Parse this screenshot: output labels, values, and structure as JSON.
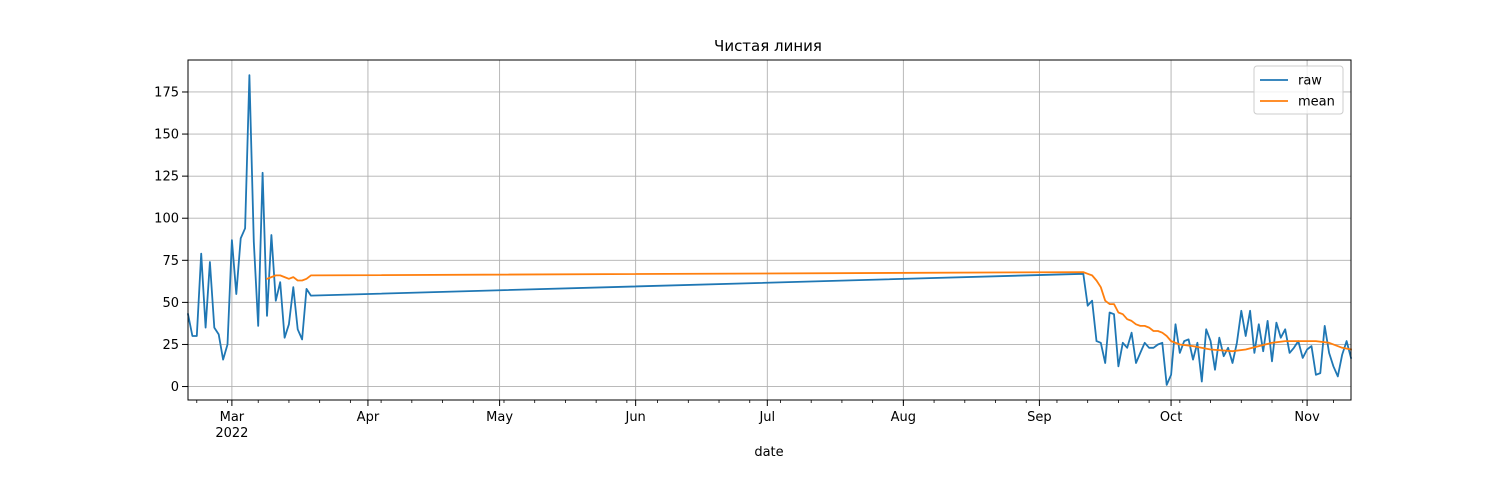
{
  "chart_data": {
    "type": "line",
    "title": "Чистая линия",
    "xlabel": "date",
    "ylabel": "",
    "x_axis_type": "date",
    "xlim": [
      "2022-02-19",
      "2022-11-11"
    ],
    "ylim": [
      -8,
      194
    ],
    "grid": true,
    "legend_position": "top-right",
    "x_ticks": [
      {
        "date": "2022-03-01",
        "label": "Mar",
        "sublabel": "2022"
      },
      {
        "date": "2022-04-01",
        "label": "Apr"
      },
      {
        "date": "2022-05-01",
        "label": "May"
      },
      {
        "date": "2022-06-01",
        "label": "Jun"
      },
      {
        "date": "2022-07-01",
        "label": "Jul"
      },
      {
        "date": "2022-08-01",
        "label": "Aug"
      },
      {
        "date": "2022-09-01",
        "label": "Sep"
      },
      {
        "date": "2022-10-01",
        "label": "Oct"
      },
      {
        "date": "2022-11-01",
        "label": "Nov"
      }
    ],
    "y_ticks": [
      0,
      25,
      50,
      75,
      100,
      125,
      150,
      175
    ],
    "series": [
      {
        "name": "raw",
        "color": "#1f77b4",
        "points": [
          [
            "2022-02-19",
            43
          ],
          [
            "2022-02-20",
            30
          ],
          [
            "2022-02-21",
            30
          ],
          [
            "2022-02-22",
            79
          ],
          [
            "2022-02-23",
            35
          ],
          [
            "2022-02-24",
            74
          ],
          [
            "2022-02-25",
            35
          ],
          [
            "2022-02-26",
            31
          ],
          [
            "2022-02-27",
            16
          ],
          [
            "2022-02-28",
            25
          ],
          [
            "2022-03-01",
            87
          ],
          [
            "2022-03-02",
            55
          ],
          [
            "2022-03-03",
            88
          ],
          [
            "2022-03-04",
            94
          ],
          [
            "2022-03-05",
            185
          ],
          [
            "2022-03-06",
            86
          ],
          [
            "2022-03-07",
            36
          ],
          [
            "2022-03-08",
            127
          ],
          [
            "2022-03-09",
            42
          ],
          [
            "2022-03-10",
            90
          ],
          [
            "2022-03-11",
            51
          ],
          [
            "2022-03-12",
            62
          ],
          [
            "2022-03-13",
            29
          ],
          [
            "2022-03-14",
            37
          ],
          [
            "2022-03-15",
            59
          ],
          [
            "2022-03-16",
            34
          ],
          [
            "2022-03-17",
            28
          ],
          [
            "2022-03-18",
            58
          ],
          [
            "2022-03-19",
            54
          ],
          [
            "2022-09-11",
            67
          ],
          [
            "2022-09-12",
            48
          ],
          [
            "2022-09-13",
            51
          ],
          [
            "2022-09-14",
            27
          ],
          [
            "2022-09-15",
            26
          ],
          [
            "2022-09-16",
            14
          ],
          [
            "2022-09-17",
            44
          ],
          [
            "2022-09-18",
            43
          ],
          [
            "2022-09-19",
            12
          ],
          [
            "2022-09-20",
            26
          ],
          [
            "2022-09-21",
            23
          ],
          [
            "2022-09-22",
            32
          ],
          [
            "2022-09-23",
            14
          ],
          [
            "2022-09-24",
            20
          ],
          [
            "2022-09-25",
            26
          ],
          [
            "2022-09-26",
            23
          ],
          [
            "2022-09-27",
            23
          ],
          [
            "2022-09-28",
            25
          ],
          [
            "2022-09-29",
            26
          ],
          [
            "2022-09-30",
            1
          ],
          [
            "2022-10-01",
            7
          ],
          [
            "2022-10-02",
            37
          ],
          [
            "2022-10-03",
            20
          ],
          [
            "2022-10-04",
            27
          ],
          [
            "2022-10-05",
            28
          ],
          [
            "2022-10-06",
            16
          ],
          [
            "2022-10-07",
            26
          ],
          [
            "2022-10-08",
            3
          ],
          [
            "2022-10-09",
            34
          ],
          [
            "2022-10-10",
            27
          ],
          [
            "2022-10-11",
            10
          ],
          [
            "2022-10-12",
            29
          ],
          [
            "2022-10-13",
            18
          ],
          [
            "2022-10-14",
            23
          ],
          [
            "2022-10-15",
            14
          ],
          [
            "2022-10-16",
            26
          ],
          [
            "2022-10-17",
            45
          ],
          [
            "2022-10-18",
            30
          ],
          [
            "2022-10-19",
            45
          ],
          [
            "2022-10-20",
            20
          ],
          [
            "2022-10-21",
            37
          ],
          [
            "2022-10-22",
            21
          ],
          [
            "2022-10-23",
            39
          ],
          [
            "2022-10-24",
            15
          ],
          [
            "2022-10-25",
            38
          ],
          [
            "2022-10-26",
            29
          ],
          [
            "2022-10-27",
            34
          ],
          [
            "2022-10-28",
            20
          ],
          [
            "2022-10-29",
            23
          ],
          [
            "2022-10-30",
            27
          ],
          [
            "2022-10-31",
            17
          ],
          [
            "2022-11-01",
            22
          ],
          [
            "2022-11-02",
            24
          ],
          [
            "2022-11-03",
            7
          ],
          [
            "2022-11-04",
            8
          ],
          [
            "2022-11-05",
            36
          ],
          [
            "2022-11-06",
            20
          ],
          [
            "2022-11-07",
            12
          ],
          [
            "2022-11-08",
            6
          ],
          [
            "2022-11-09",
            19
          ],
          [
            "2022-11-10",
            27
          ],
          [
            "2022-11-11",
            17
          ]
        ]
      },
      {
        "name": "mean",
        "color": "#ff7f0e",
        "points": [
          [
            "2022-03-09",
            64
          ],
          [
            "2022-03-10",
            65
          ],
          [
            "2022-03-11",
            66
          ],
          [
            "2022-03-12",
            66
          ],
          [
            "2022-03-13",
            65
          ],
          [
            "2022-03-14",
            64
          ],
          [
            "2022-03-15",
            65
          ],
          [
            "2022-03-16",
            63
          ],
          [
            "2022-03-17",
            63
          ],
          [
            "2022-03-18",
            64
          ],
          [
            "2022-03-19",
            66
          ],
          [
            "2022-09-11",
            68
          ],
          [
            "2022-09-12",
            67
          ],
          [
            "2022-09-13",
            66
          ],
          [
            "2022-09-14",
            63
          ],
          [
            "2022-09-15",
            59
          ],
          [
            "2022-09-16",
            51
          ],
          [
            "2022-09-17",
            49
          ],
          [
            "2022-09-18",
            49
          ],
          [
            "2022-09-19",
            44
          ],
          [
            "2022-09-20",
            43
          ],
          [
            "2022-09-21",
            40
          ],
          [
            "2022-09-22",
            39
          ],
          [
            "2022-09-23",
            37
          ],
          [
            "2022-09-24",
            36
          ],
          [
            "2022-09-25",
            36
          ],
          [
            "2022-09-26",
            35
          ],
          [
            "2022-09-27",
            33
          ],
          [
            "2022-09-28",
            33
          ],
          [
            "2022-09-29",
            32
          ],
          [
            "2022-09-30",
            30
          ],
          [
            "2022-10-01",
            27
          ],
          [
            "2022-10-03",
            25
          ],
          [
            "2022-10-06",
            24
          ],
          [
            "2022-10-10",
            22
          ],
          [
            "2022-10-15",
            21
          ],
          [
            "2022-10-18",
            22
          ],
          [
            "2022-10-21",
            24
          ],
          [
            "2022-10-24",
            26
          ],
          [
            "2022-10-27",
            27
          ],
          [
            "2022-10-31",
            27
          ],
          [
            "2022-11-03",
            27
          ],
          [
            "2022-11-06",
            26
          ],
          [
            "2022-11-09",
            23
          ],
          [
            "2022-11-11",
            22
          ]
        ]
      }
    ]
  }
}
